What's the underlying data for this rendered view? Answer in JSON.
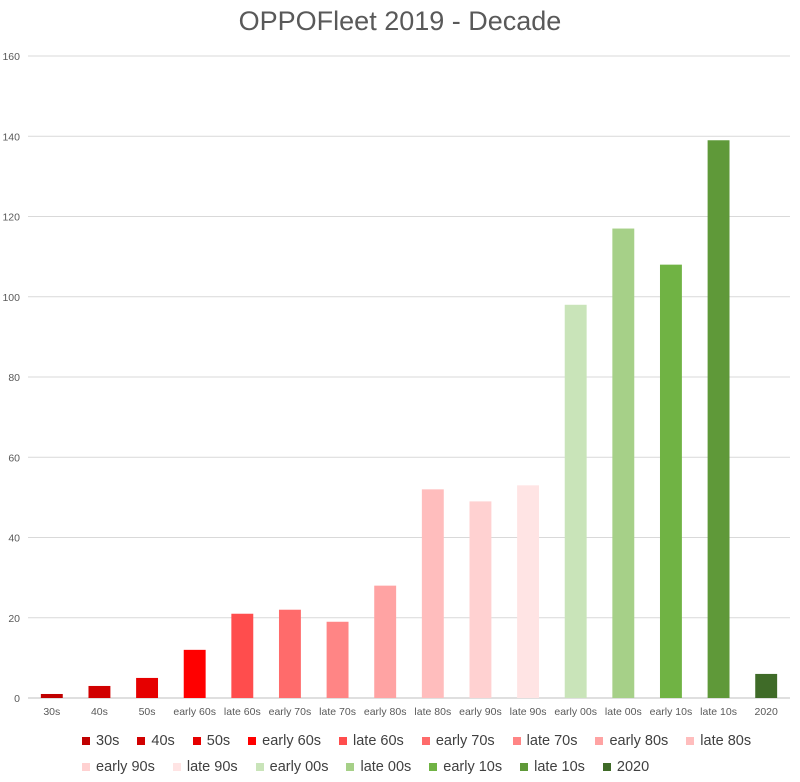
{
  "chart_data": {
    "type": "bar",
    "title": "OPPOFleet 2019 - Decade",
    "xlabel": "",
    "ylabel": "",
    "ylim": [
      0,
      160
    ],
    "yticks": [
      0,
      20,
      40,
      60,
      80,
      100,
      120,
      140,
      160
    ],
    "grid": true,
    "legend_position": "bottom",
    "categories": [
      "30s",
      "40s",
      "50s",
      "early 60s",
      "late 60s",
      "early 70s",
      "late 70s",
      "early 80s",
      "late 80s",
      "early 90s",
      "late 90s",
      "early 00s",
      "late 00s",
      "early 10s",
      "late 10s",
      "2020"
    ],
    "values": [
      1,
      3,
      5,
      12,
      21,
      22,
      19,
      28,
      52,
      49,
      53,
      98,
      117,
      108,
      139,
      6
    ],
    "colors": [
      "#c00000",
      "#d10000",
      "#e60000",
      "#ff0000",
      "#ff4d4d",
      "#ff6b6b",
      "#ff8585",
      "#ffa3a3",
      "#ffbdbd",
      "#ffd1d1",
      "#ffe4e4",
      "#c9e4b9",
      "#a6d088",
      "#70b344",
      "#5f9939",
      "#3f6b28"
    ]
  }
}
